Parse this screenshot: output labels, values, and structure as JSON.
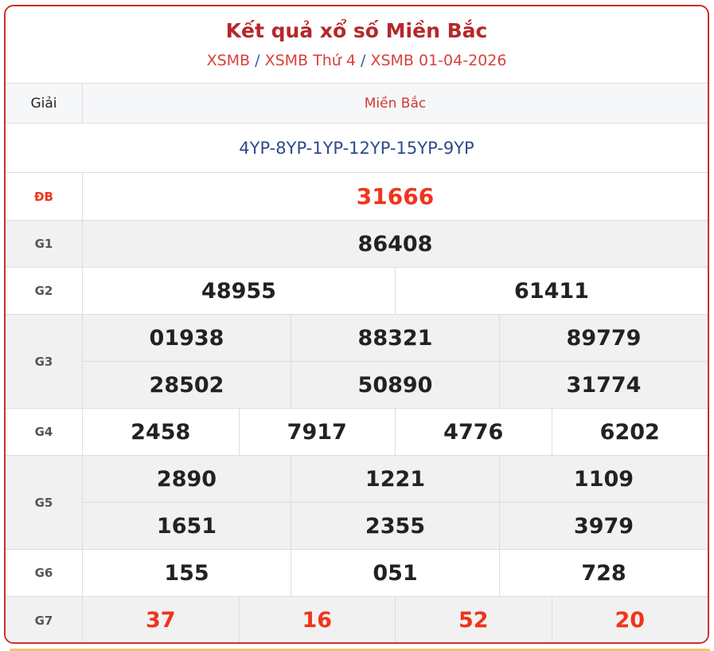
{
  "header": {
    "title": "Kết quả xổ số Miền Bắc",
    "breadcrumb": [
      "XSMB",
      "XSMB Thứ 4",
      "XSMB 01-04-2026"
    ],
    "separator": "/"
  },
  "table": {
    "col_label": "Giải",
    "col_region": "Miền Bắc",
    "codes": "4YP-8YP-1YP-12YP-15YP-9YP",
    "prizes": [
      {
        "label": "ĐB",
        "numbers": [
          "31666"
        ]
      },
      {
        "label": "G1",
        "numbers": [
          "86408"
        ]
      },
      {
        "label": "G2",
        "numbers": [
          "48955",
          "61411"
        ]
      },
      {
        "label": "G3",
        "numbers": [
          "01938",
          "88321",
          "89779",
          "28502",
          "50890",
          "31774"
        ]
      },
      {
        "label": "G4",
        "numbers": [
          "2458",
          "7917",
          "4776",
          "6202"
        ]
      },
      {
        "label": "G5",
        "numbers": [
          "2890",
          "1221",
          "1109",
          "1651",
          "2355",
          "3979"
        ]
      },
      {
        "label": "G6",
        "numbers": [
          "155",
          "051",
          "728"
        ]
      },
      {
        "label": "G7",
        "numbers": [
          "37",
          "16",
          "52",
          "20"
        ]
      }
    ]
  },
  "colors": {
    "accent": "#c9302c",
    "special": "#f0341c",
    "code": "#2f4a8a"
  }
}
